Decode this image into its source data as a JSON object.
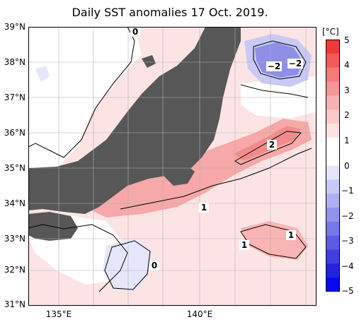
{
  "title": "Daily SST anomalies 17 Oct. 2019.",
  "unit": "[°C]",
  "lat_labels": [
    "39°N",
    "38°N",
    "37°N",
    "36°N",
    "35°N",
    "34°N",
    "33°N",
    "32°N",
    "31°N"
  ],
  "lon_labels": [
    "135°E",
    "140°E"
  ],
  "colorbar": {
    "ticks": [
      "5",
      "4",
      "3",
      "2",
      "1",
      "0",
      "−1",
      "−2",
      "−3",
      "−4",
      "−5"
    ],
    "colors": [
      "#f03a3a",
      "#f35a5a",
      "#f57a7a",
      "#f79696",
      "#f9b0b0",
      "#fbc9c9",
      "#fde2e2",
      "#ffffff",
      "#ffffff",
      "#e4e4fb",
      "#c9c9f6",
      "#aeaef2",
      "#9393ee",
      "#7777ea",
      "#5b5be6",
      "#3f3fe2",
      "#2323de",
      "#0808f0"
    ]
  },
  "contour_labels": [
    "0",
    "−2",
    "−2",
    "2",
    "1",
    "1",
    "1",
    "0"
  ],
  "colors": {
    "land": "#575757",
    "ocean_base": "#fde4e4",
    "warm": "#f3a0a0",
    "cold": "#8f8fe8",
    "grid": "#b0b0b0"
  }
}
